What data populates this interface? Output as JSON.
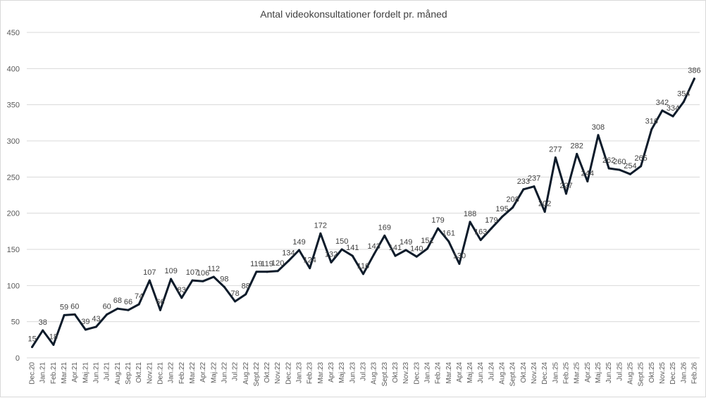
{
  "chart_data": {
    "type": "line",
    "title": "Antal videokonsultationer  fordelt pr. måned",
    "xlabel": "",
    "ylabel": "",
    "ylim": [
      0,
      450
    ],
    "yticks": [
      0,
      50,
      100,
      150,
      200,
      250,
      300,
      350,
      400,
      450
    ],
    "grid": true,
    "line_color": "#0d1b2a",
    "grid_color": "#d9d9d9",
    "categories": [
      "Dec.20",
      "Jan.21",
      "Feb.21",
      "Mar.21",
      "Apr.21",
      "Maj.21",
      "Jun.21",
      "Jul.21",
      "Aug.21",
      "Sep.21",
      "Okt.21",
      "Nov.21",
      "Dec.21",
      "Jan.22",
      "Feb.22",
      "Mar.22",
      "Apr.22",
      "Maj.22",
      "Jun.22",
      "Jul.22",
      "Aug.22",
      "Sept.22",
      "Okt.22",
      "Nov.22",
      "Dec.22",
      "Jan.23",
      "Feb.23",
      "Mar.23",
      "Apr.23",
      "Maj.23",
      "Jun.23",
      "Jul.23",
      "Aug.23",
      "Sept.23",
      "Okt.23",
      "Nov.23",
      "Dec.23",
      "Jan.24",
      "Feb.24",
      "Mar.24",
      "Apr.24",
      "Maj.24",
      "Jun.24",
      "Jul.24",
      "Aug.24",
      "Sept.24",
      "Okt.24",
      "Nov.24",
      "Dec.24",
      "Jan.25",
      "Feb.25",
      "Mar.25",
      "Apr.25",
      "Maj.25",
      "Jun.25",
      "Jul.25",
      "Aug.25",
      "Sept.25",
      "Okt.25",
      "Nov.25",
      "Dec.25",
      "Jan.26",
      "Feb.26"
    ],
    "values": [
      15,
      38,
      18,
      59,
      60,
      39,
      43,
      60,
      68,
      66,
      74,
      107,
      66,
      109,
      83,
      107,
      106,
      112,
      98,
      78,
      88,
      119,
      119,
      120,
      134,
      149,
      124,
      172,
      132,
      150,
      141,
      116,
      143,
      169,
      141,
      149,
      140,
      151,
      179,
      161,
      130,
      188,
      163,
      179,
      195,
      208,
      233,
      237,
      202,
      277,
      227,
      282,
      244,
      308,
      262,
      260,
      254,
      265,
      316,
      342,
      334,
      354,
      386
    ]
  }
}
